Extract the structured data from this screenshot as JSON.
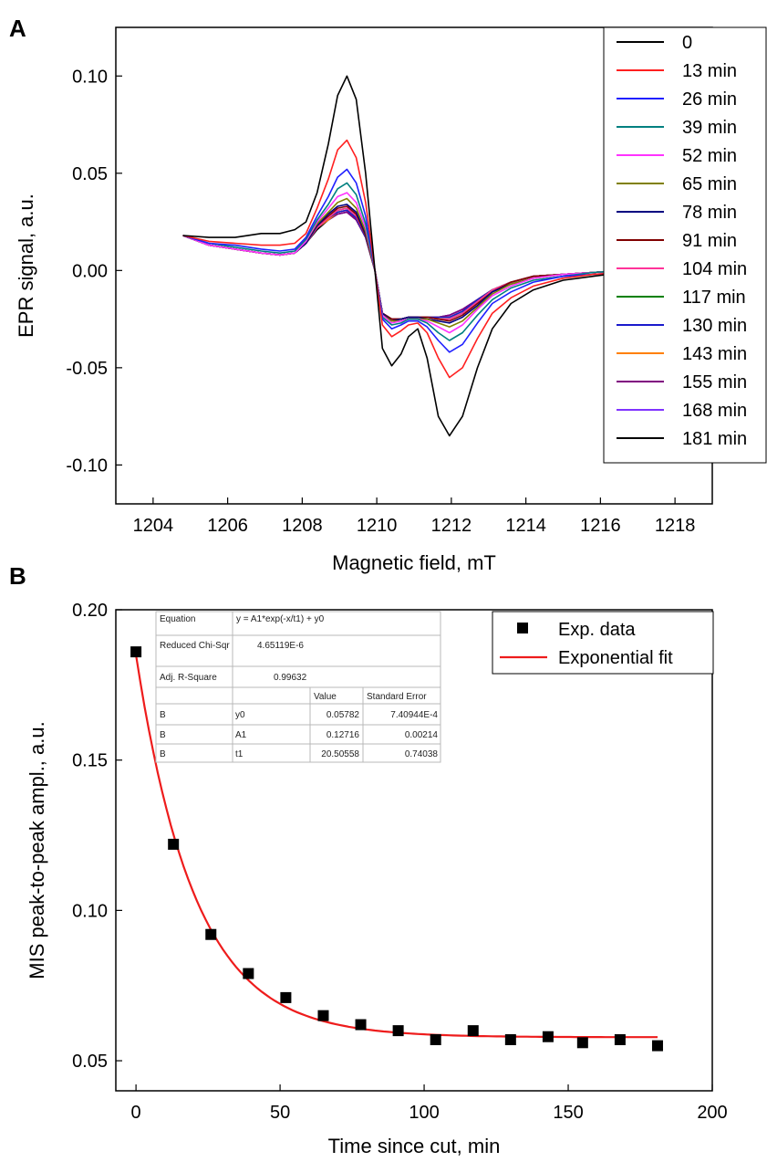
{
  "panels": {
    "a_letter": "A",
    "b_letter": "B"
  },
  "colors": {
    "fit_line": "#ee1c1c",
    "marker": "#000000",
    "table_grid": "#b8b8b8"
  },
  "chart_data": [
    {
      "type": "line",
      "panel": "A",
      "title": "",
      "xlabel": "Magnetic field, mT",
      "ylabel": "EPR signal, a.u.",
      "xlim": [
        1203,
        1219
      ],
      "ylim": [
        -0.12,
        0.125
      ],
      "xticks": [
        1204,
        1206,
        1208,
        1210,
        1212,
        1214,
        1216,
        1218
      ],
      "xtick_labels": [
        "1204",
        "1206",
        "1208",
        "1210",
        "1212",
        "1214",
        "1216",
        "1218"
      ],
      "yticks": [
        -0.1,
        -0.05,
        0.0,
        0.05,
        0.1
      ],
      "ytick_labels": [
        "-0.10",
        "-0.05",
        "0.00",
        "0.05",
        "0.10"
      ],
      "grid": false,
      "legend_position": "top-right",
      "x": [
        1204.8,
        1205.5,
        1206.2,
        1206.9,
        1207.4,
        1207.8,
        1208.1,
        1208.4,
        1208.7,
        1208.95,
        1209.2,
        1209.45,
        1209.7,
        1209.95,
        1210.15,
        1210.4,
        1210.65,
        1210.85,
        1211.1,
        1211.35,
        1211.65,
        1211.95,
        1212.3,
        1212.7,
        1213.1,
        1213.6,
        1214.2,
        1215.0,
        1215.8,
        1216.6
      ],
      "series": [
        {
          "name": "0",
          "color": "#000000",
          "values": [
            0.018,
            0.017,
            0.017,
            0.019,
            0.019,
            0.021,
            0.025,
            0.04,
            0.065,
            0.09,
            0.1,
            0.088,
            0.05,
            0.0,
            -0.04,
            -0.049,
            -0.043,
            -0.034,
            -0.03,
            -0.045,
            -0.075,
            -0.085,
            -0.075,
            -0.05,
            -0.03,
            -0.017,
            -0.01,
            -0.005,
            -0.003,
            -0.001
          ]
        },
        {
          "name": "13 min",
          "color": "#ff2020",
          "values": [
            0.018,
            0.015,
            0.014,
            0.013,
            0.013,
            0.014,
            0.019,
            0.032,
            0.047,
            0.062,
            0.067,
            0.058,
            0.035,
            0.0,
            -0.028,
            -0.034,
            -0.031,
            -0.028,
            -0.027,
            -0.032,
            -0.045,
            -0.055,
            -0.05,
            -0.035,
            -0.022,
            -0.014,
            -0.008,
            -0.004,
            -0.002,
            -0.001
          ]
        },
        {
          "name": "26 min",
          "color": "#2020ff",
          "values": [
            0.018,
            0.014,
            0.013,
            0.011,
            0.01,
            0.011,
            0.017,
            0.028,
            0.038,
            0.048,
            0.052,
            0.045,
            0.028,
            0.0,
            -0.025,
            -0.03,
            -0.028,
            -0.026,
            -0.026,
            -0.029,
            -0.036,
            -0.042,
            -0.038,
            -0.027,
            -0.017,
            -0.011,
            -0.006,
            -0.003,
            -0.002,
            -0.001
          ]
        },
        {
          "name": "39 min",
          "color": "#008080",
          "values": [
            0.018,
            0.014,
            0.012,
            0.01,
            0.009,
            0.01,
            0.016,
            0.026,
            0.034,
            0.042,
            0.045,
            0.039,
            0.024,
            0.0,
            -0.024,
            -0.028,
            -0.027,
            -0.025,
            -0.025,
            -0.027,
            -0.032,
            -0.036,
            -0.032,
            -0.023,
            -0.015,
            -0.009,
            -0.005,
            -0.003,
            -0.001,
            0.0
          ]
        },
        {
          "name": "52 min",
          "color": "#ff33ff",
          "values": [
            0.018,
            0.013,
            0.011,
            0.009,
            0.008,
            0.009,
            0.015,
            0.025,
            0.032,
            0.038,
            0.04,
            0.035,
            0.022,
            0.0,
            -0.023,
            -0.027,
            -0.026,
            -0.025,
            -0.025,
            -0.026,
            -0.029,
            -0.032,
            -0.028,
            -0.02,
            -0.013,
            -0.008,
            -0.004,
            -0.002,
            -0.001,
            0.0
          ]
        },
        {
          "name": "65 min",
          "color": "#808000",
          "values": [
            0.018,
            0.013,
            0.011,
            0.009,
            0.008,
            0.009,
            0.015,
            0.024,
            0.03,
            0.035,
            0.037,
            0.032,
            0.02,
            0.0,
            -0.023,
            -0.026,
            -0.026,
            -0.025,
            -0.025,
            -0.025,
            -0.027,
            -0.029,
            -0.026,
            -0.019,
            -0.012,
            -0.007,
            -0.004,
            -0.002,
            -0.001,
            0.0
          ]
        },
        {
          "name": "78 min",
          "color": "#000080",
          "values": [
            0.018,
            0.013,
            0.011,
            0.009,
            0.008,
            0.009,
            0.014,
            0.023,
            0.029,
            0.033,
            0.034,
            0.03,
            0.019,
            0.0,
            -0.022,
            -0.026,
            -0.025,
            -0.024,
            -0.024,
            -0.025,
            -0.026,
            -0.027,
            -0.024,
            -0.018,
            -0.011,
            -0.007,
            -0.004,
            -0.002,
            -0.001,
            0.0
          ]
        },
        {
          "name": "91 min",
          "color": "#800000",
          "values": [
            0.018,
            0.013,
            0.011,
            0.009,
            0.008,
            0.009,
            0.014,
            0.023,
            0.028,
            0.032,
            0.033,
            0.029,
            0.018,
            0.0,
            -0.022,
            -0.025,
            -0.025,
            -0.024,
            -0.024,
            -0.024,
            -0.025,
            -0.026,
            -0.023,
            -0.017,
            -0.011,
            -0.006,
            -0.003,
            -0.002,
            -0.001,
            0.0
          ]
        },
        {
          "name": "104 min",
          "color": "#ff3399",
          "values": [
            0.018,
            0.013,
            0.011,
            0.009,
            0.008,
            0.009,
            0.014,
            0.022,
            0.027,
            0.031,
            0.032,
            0.028,
            0.018,
            0.0,
            -0.022,
            -0.025,
            -0.025,
            -0.024,
            -0.024,
            -0.024,
            -0.025,
            -0.025,
            -0.022,
            -0.016,
            -0.01,
            -0.006,
            -0.003,
            -0.002,
            -0.001,
            0.0
          ]
        },
        {
          "name": "117 min",
          "color": "#008000",
          "values": [
            0.018,
            0.013,
            0.011,
            0.009,
            0.008,
            0.009,
            0.014,
            0.022,
            0.027,
            0.031,
            0.032,
            0.028,
            0.018,
            0.0,
            -0.022,
            -0.025,
            -0.025,
            -0.024,
            -0.024,
            -0.024,
            -0.025,
            -0.025,
            -0.022,
            -0.016,
            -0.01,
            -0.006,
            -0.003,
            -0.002,
            -0.001,
            0.0
          ]
        },
        {
          "name": "130 min",
          "color": "#1a1acc",
          "values": [
            0.018,
            0.013,
            0.011,
            0.009,
            0.008,
            0.009,
            0.014,
            0.022,
            0.027,
            0.03,
            0.031,
            0.027,
            0.017,
            0.0,
            -0.022,
            -0.025,
            -0.025,
            -0.024,
            -0.024,
            -0.024,
            -0.024,
            -0.024,
            -0.021,
            -0.015,
            -0.01,
            -0.006,
            -0.003,
            -0.002,
            -0.001,
            0.0
          ]
        },
        {
          "name": "143 min",
          "color": "#ff8000",
          "values": [
            0.018,
            0.013,
            0.011,
            0.009,
            0.008,
            0.009,
            0.014,
            0.022,
            0.026,
            0.03,
            0.031,
            0.027,
            0.017,
            0.0,
            -0.022,
            -0.025,
            -0.025,
            -0.024,
            -0.024,
            -0.024,
            -0.024,
            -0.024,
            -0.021,
            -0.015,
            -0.01,
            -0.006,
            -0.003,
            -0.002,
            -0.001,
            0.0
          ]
        },
        {
          "name": "155 min",
          "color": "#800080",
          "values": [
            0.018,
            0.013,
            0.011,
            0.009,
            0.008,
            0.009,
            0.014,
            0.022,
            0.026,
            0.029,
            0.03,
            0.026,
            0.017,
            0.0,
            -0.022,
            -0.025,
            -0.025,
            -0.024,
            -0.024,
            -0.024,
            -0.024,
            -0.023,
            -0.02,
            -0.015,
            -0.01,
            -0.006,
            -0.003,
            -0.002,
            -0.001,
            0.0
          ]
        },
        {
          "name": "168 min",
          "color": "#8033ff",
          "values": [
            0.018,
            0.013,
            0.011,
            0.009,
            0.008,
            0.009,
            0.014,
            0.022,
            0.026,
            0.029,
            0.03,
            0.026,
            0.017,
            0.0,
            -0.022,
            -0.025,
            -0.025,
            -0.024,
            -0.024,
            -0.024,
            -0.024,
            -0.023,
            -0.02,
            -0.015,
            -0.01,
            -0.006,
            -0.003,
            -0.002,
            -0.001,
            0.0
          ]
        },
        {
          "name": "181 min",
          "color": "#000000",
          "values": [
            0.018,
            0.013,
            0.011,
            0.009,
            0.008,
            0.009,
            0.014,
            0.021,
            0.026,
            0.029,
            0.03,
            0.026,
            0.017,
            0.0,
            -0.022,
            -0.025,
            -0.025,
            -0.024,
            -0.024,
            -0.024,
            -0.024,
            -0.023,
            -0.02,
            -0.015,
            -0.01,
            -0.006,
            -0.003,
            -0.002,
            -0.001,
            0.0
          ]
        }
      ]
    },
    {
      "type": "scatter",
      "panel": "B",
      "title": "",
      "xlabel": "Time since cut, min",
      "ylabel": "MIS peak-to-peak ampl., a.u.",
      "xlim": [
        -7,
        200
      ],
      "ylim": [
        0.04,
        0.2
      ],
      "xticks": [
        0,
        50,
        100,
        150,
        200
      ],
      "xtick_labels": [
        "0",
        "50",
        "100",
        "150",
        "200"
      ],
      "yticks": [
        0.05,
        0.1,
        0.15,
        0.2
      ],
      "ytick_labels": [
        "0.05",
        "0.10",
        "0.15",
        "0.20"
      ],
      "grid": false,
      "legend_position": "top-right",
      "series": [
        {
          "name": "Exp. data",
          "x": [
            0,
            13,
            26,
            39,
            52,
            65,
            78,
            91,
            104,
            117,
            130,
            143,
            155,
            168,
            181
          ],
          "values": [
            0.186,
            0.122,
            0.092,
            0.079,
            0.071,
            0.065,
            0.062,
            0.06,
            0.057,
            0.06,
            0.057,
            0.058,
            0.056,
            0.057,
            0.055
          ]
        },
        {
          "name": "Exponential fit",
          "model": "y = A1*exp(-x/t1) + y0",
          "params": {
            "y0": 0.05782,
            "A1": 0.12716,
            "t1": 20.50558
          },
          "x_range": [
            0,
            181
          ]
        }
      ],
      "fit_table": {
        "rows": [
          [
            "Equation",
            "",
            "y = A1*exp(-x/t1) + y0",
            ""
          ],
          [
            "Reduced Chi-Sqr",
            "",
            "4.65119E-6",
            ""
          ],
          [
            "Adj. R-Square",
            "",
            "0.99632",
            ""
          ],
          [
            "",
            "",
            "Value",
            "Standard Error"
          ],
          [
            "B",
            "y0",
            "0.05782",
            "7.40944E-4"
          ],
          [
            "B",
            "A1",
            "0.12716",
            "0.00214"
          ],
          [
            "B",
            "t1",
            "20.50558",
            "0.74038"
          ]
        ]
      }
    }
  ]
}
